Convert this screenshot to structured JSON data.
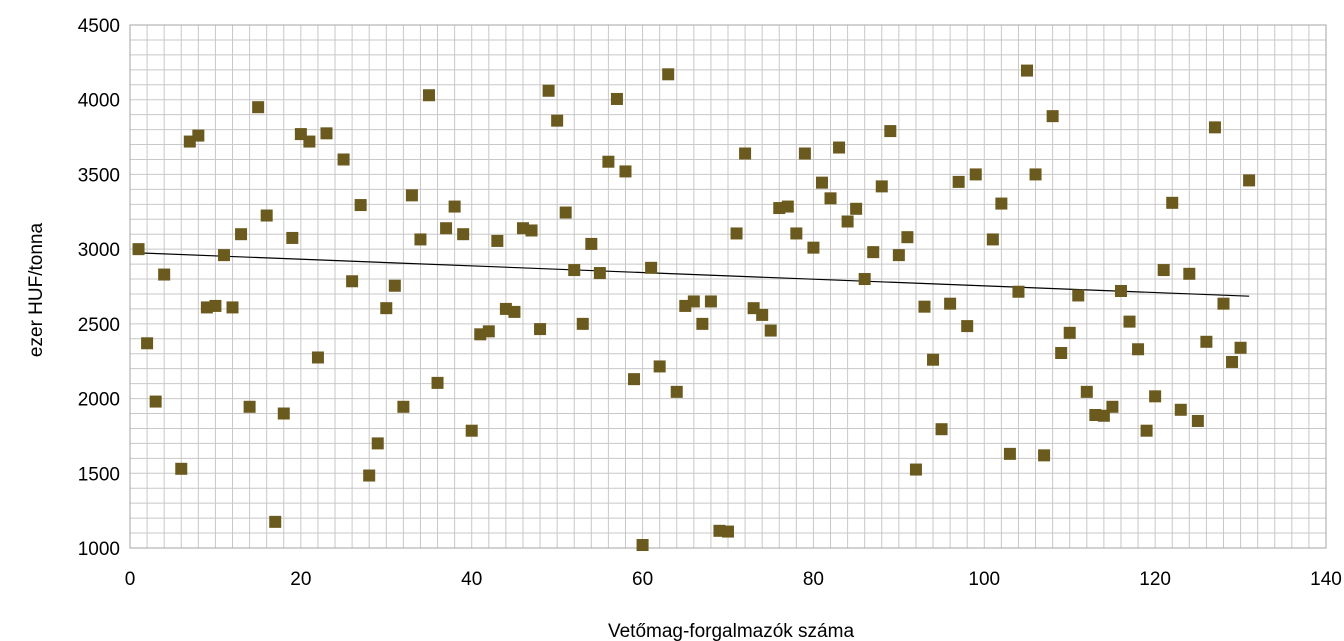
{
  "chart_data": {
    "type": "scatter",
    "title": "",
    "xlabel": "Vetőmag-forgalmazók száma",
    "ylabel": "ezer HUF/tonna",
    "xlim": [
      0,
      140
    ],
    "ylim": [
      1000,
      4500
    ],
    "x_ticks": [
      0,
      20,
      40,
      60,
      80,
      100,
      120,
      140
    ],
    "y_ticks": [
      1000,
      1500,
      2000,
      2500,
      3000,
      3500,
      4000,
      4500
    ],
    "y_minor_step": 100,
    "x_minor_step": 2,
    "grid": true,
    "legend": "none",
    "marker_color": "#6b5a1e",
    "grid_color": "#c8c8c8",
    "trendline_color": "#000000",
    "series": [
      {
        "x": [
          1,
          2,
          3,
          4,
          6,
          7,
          8,
          9,
          10,
          11,
          12,
          13,
          14,
          15,
          16,
          17,
          18,
          19,
          20,
          21,
          22,
          23,
          25,
          26,
          27,
          28,
          29,
          30,
          31,
          32,
          33,
          34,
          35,
          36,
          37,
          38,
          39,
          40,
          41,
          42,
          43,
          44,
          45,
          46,
          47,
          48,
          49,
          50,
          51,
          52,
          53,
          54,
          55,
          56,
          57,
          58,
          59,
          60,
          61,
          62,
          63,
          64,
          65,
          66,
          67,
          68,
          69,
          70,
          71,
          72,
          73,
          74,
          75,
          76,
          77,
          78,
          79,
          80,
          81,
          82,
          83,
          84,
          85,
          86,
          87,
          88,
          89,
          90,
          91,
          92,
          93,
          94,
          95,
          96,
          97,
          98,
          99,
          101,
          102,
          103,
          104,
          105,
          106,
          107,
          108,
          109,
          110,
          111,
          112,
          113,
          114,
          115,
          116,
          117,
          118,
          119,
          120,
          121,
          122,
          123,
          124,
          125,
          126,
          127,
          128,
          129,
          130,
          131
        ],
        "y": [
          3000,
          2370,
          1980,
          2830,
          1530,
          3720,
          3760,
          2610,
          2620,
          2960,
          2610,
          3100,
          1945,
          3950,
          3225,
          1175,
          1900,
          3075,
          3770,
          3720,
          2275,
          3775,
          3600,
          2785,
          3295,
          1485,
          1700,
          2605,
          2755,
          1945,
          3360,
          3065,
          4030,
          2105,
          3140,
          3285,
          3100,
          1785,
          2430,
          2450,
          3055,
          2600,
          2580,
          3140,
          3125,
          2465,
          4060,
          3860,
          3245,
          2860,
          2500,
          3035,
          2840,
          3585,
          4005,
          3520,
          2130,
          1020,
          2875,
          2215,
          4170,
          2045,
          2620,
          2650,
          2500,
          2650,
          1115,
          1110,
          3105,
          3640,
          2605,
          2560,
          2455,
          3275,
          3285,
          3105,
          3640,
          3010,
          3445,
          3340,
          3680,
          3185,
          3270,
          2800,
          2980,
          3420,
          3790,
          2960,
          3080,
          1525,
          2615,
          2260,
          1795,
          2635,
          3450,
          2485,
          3500,
          3065,
          3305,
          1630,
          2715,
          4195,
          3500,
          1620,
          3890,
          2305,
          2440,
          2690,
          2045,
          1890,
          1885,
          1945,
          2720,
          2515,
          2330,
          1785,
          2015,
          2860,
          3310,
          1925,
          2835,
          1850,
          2380,
          3815,
          2635,
          2245,
          2340,
          3460
        ]
      }
    ],
    "trendline": {
      "x": [
        1,
        131
      ],
      "y": [
        2975,
        2685
      ]
    }
  }
}
